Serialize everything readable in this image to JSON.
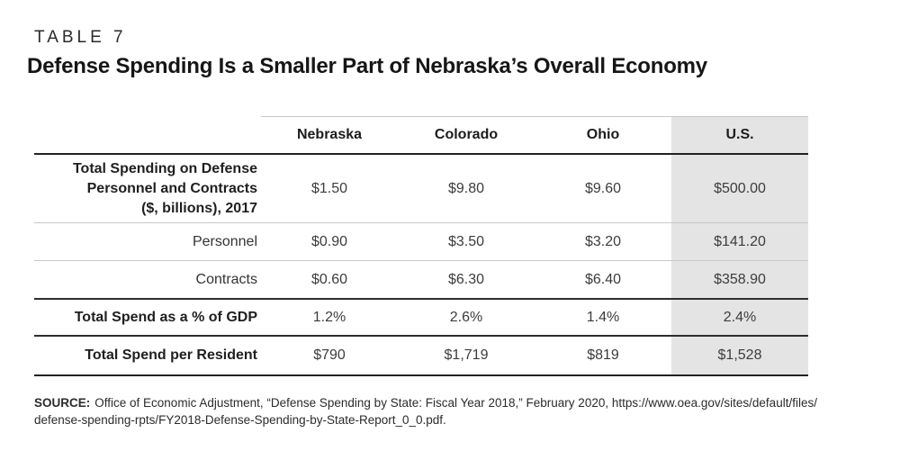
{
  "chart_data": {
    "type": "table",
    "table_number": "TABLE 7",
    "title": "Defense Spending Is a Smaller Part of Nebraska’s Overall Economy",
    "columns": [
      "",
      "Nebraska",
      "Colorado",
      "Ohio",
      "U.S."
    ],
    "highlight_column": "U.S.",
    "rows": [
      {
        "label": "Total Spending on Defense\nPersonnel and Contracts\n($, billions), 2017",
        "emphasis": true,
        "values": [
          "$1.50",
          "$9.80",
          "$9.60",
          "$500.00"
        ]
      },
      {
        "label": "Personnel",
        "emphasis": false,
        "values": [
          "$0.90",
          "$3.50",
          "$3.20",
          "$141.20"
        ]
      },
      {
        "label": "Contracts",
        "emphasis": false,
        "values": [
          "$0.60",
          "$6.30",
          "$6.40",
          "$358.90"
        ]
      },
      {
        "label": "Total Spend as a % of GDP",
        "emphasis": true,
        "values": [
          "1.2%",
          "2.6%",
          "1.4%",
          "2.4%"
        ]
      },
      {
        "label": "Total Spend per Resident",
        "emphasis": true,
        "values": [
          "$790",
          "$1,719",
          "$819",
          "$1,528"
        ]
      }
    ]
  },
  "source": {
    "label": "SOURCE:",
    "line1": "Office of Economic Adjustment, “Defense Spending by State: Fiscal Year 2018,” February 2020, https://www.oea.gov/sites/default/files/",
    "line2": "defense-spending-rpts/FY2018-Defense-Spending-by-State-Report_0_0.pdf."
  },
  "colors": {
    "highlight_column_bg": "#e4e4e4",
    "rule_dark": "#222222",
    "rule_light": "#c8c8c8",
    "text_primary": "#1f1f1f",
    "text_secondary": "#3c3c3c"
  }
}
